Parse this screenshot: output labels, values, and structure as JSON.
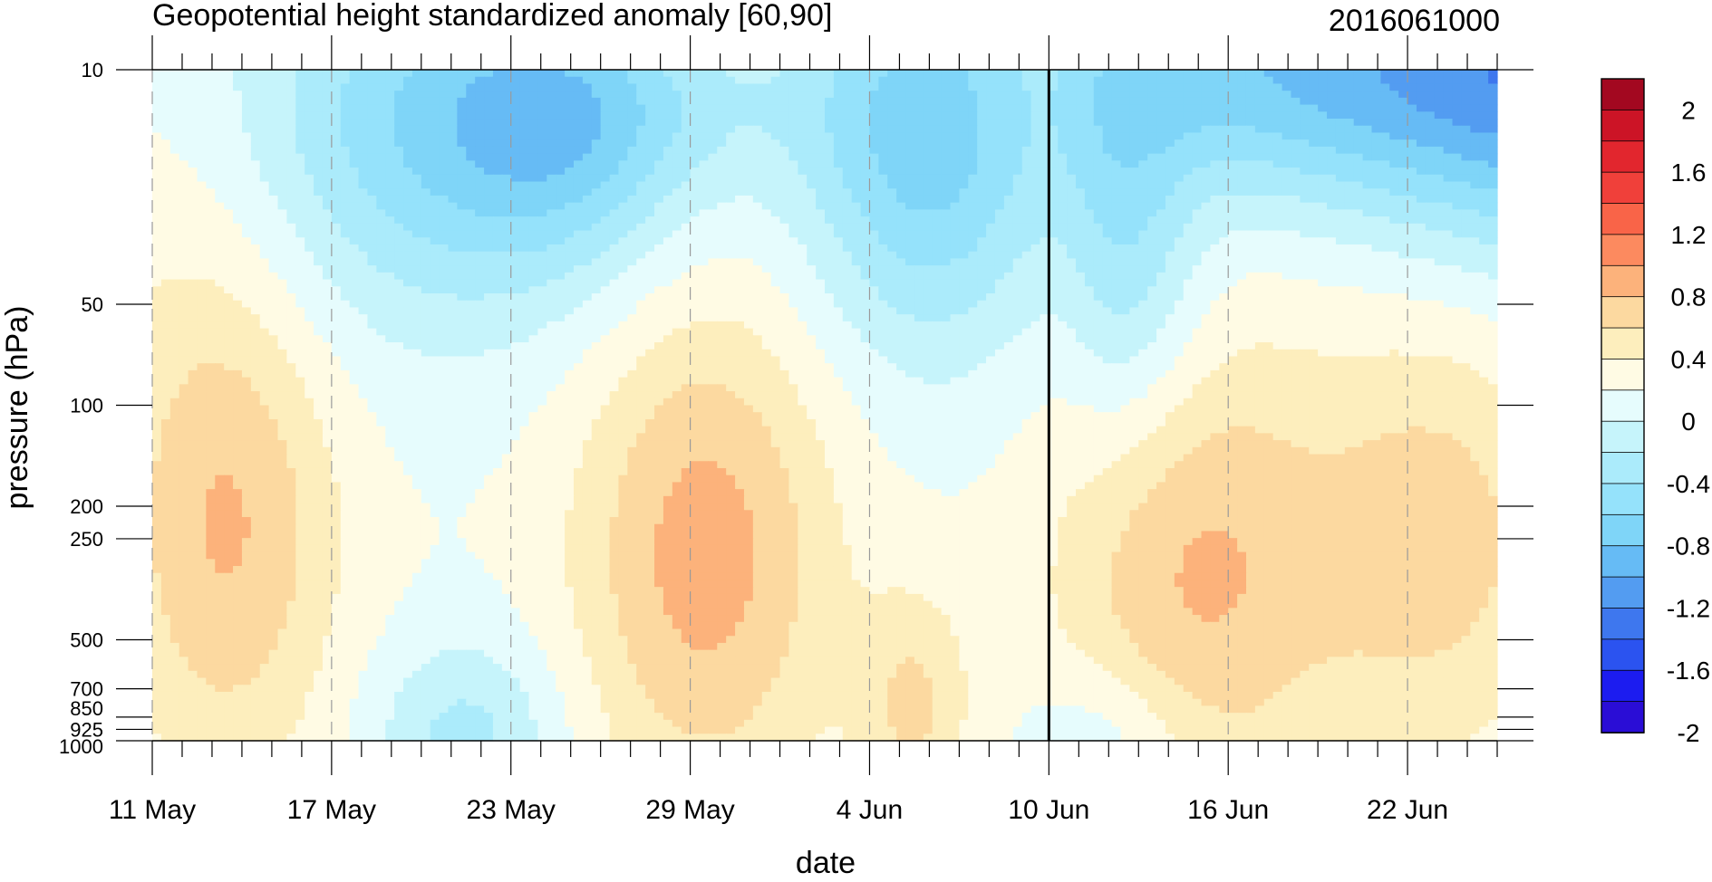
{
  "chart_data": {
    "type": "heatmap",
    "title": "Geopotential height standardized anomaly [60,90]",
    "date_label": "2016061000",
    "xlabel": "date",
    "ylabel": "pressure (hPa)",
    "x_ticks": [
      "11 May",
      "17 May",
      "23 May",
      "29 May",
      "4 Jun",
      "10 Jun",
      "16 Jun",
      "22 Jun"
    ],
    "x_start": "11 May",
    "x_end": "25 Jun",
    "current_date": "10 Jun",
    "y_ticks": [
      10,
      50,
      100,
      200,
      250,
      500,
      700,
      850,
      925,
      1000
    ],
    "ylim": [
      1000,
      10
    ],
    "y_scale": "log",
    "colorbar": {
      "labels": [
        "2",
        "1.6",
        "1.2",
        "0.8",
        "0.4",
        "0",
        "-0.4",
        "-0.8",
        "-1.2",
        "-1.6",
        "-2"
      ],
      "levels": [
        -2.2,
        -2.0,
        -1.8,
        -1.6,
        -1.4,
        -1.2,
        -1.0,
        -0.8,
        -0.6,
        -0.4,
        -0.2,
        0.0,
        0.2,
        0.4,
        0.6,
        0.8,
        1.0,
        1.2,
        1.4,
        1.6,
        1.8,
        2.0,
        2.2
      ],
      "colors": [
        "#2a0dd6",
        "#1c1cf0",
        "#2b53f0",
        "#3e77ee",
        "#539cf1",
        "#66bbf5",
        "#7fd5f8",
        "#95e2fb",
        "#abebfb",
        "#c6f4fb",
        "#e6fcfd",
        "#fffbe4",
        "#fdeebd",
        "#fcd9a0",
        "#fcb27b",
        "#fc8a5f",
        "#f96448",
        "#f0403a",
        "#e2262e",
        "#cc1426",
        "#a30820"
      ]
    }
  }
}
